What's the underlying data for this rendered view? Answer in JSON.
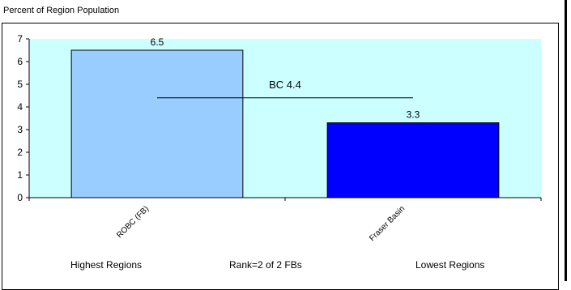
{
  "chart_data": {
    "type": "bar",
    "title": "Percent of Region Population",
    "categories": [
      "ROBC (FB)",
      "Fraser Basin"
    ],
    "values": [
      6.5,
      3.3
    ],
    "data_labels": [
      "6.5",
      "3.3"
    ],
    "bar_colors": [
      "#99CCFF",
      "#0000FF"
    ],
    "plot_background": "#CCFFFF",
    "ylim": [
      0,
      7
    ],
    "yticks": [
      "0",
      "1",
      "2",
      "3",
      "4",
      "5",
      "6",
      "7"
    ],
    "reference_line": {
      "label": "BC 4.4",
      "value": 4.4
    },
    "xlabel": "",
    "ylabel": "",
    "grid": false,
    "legend": "none"
  },
  "footer": {
    "left": "Highest Regions",
    "center": "Rank=2 of 2 FBs",
    "right": "Lowest Regions"
  }
}
